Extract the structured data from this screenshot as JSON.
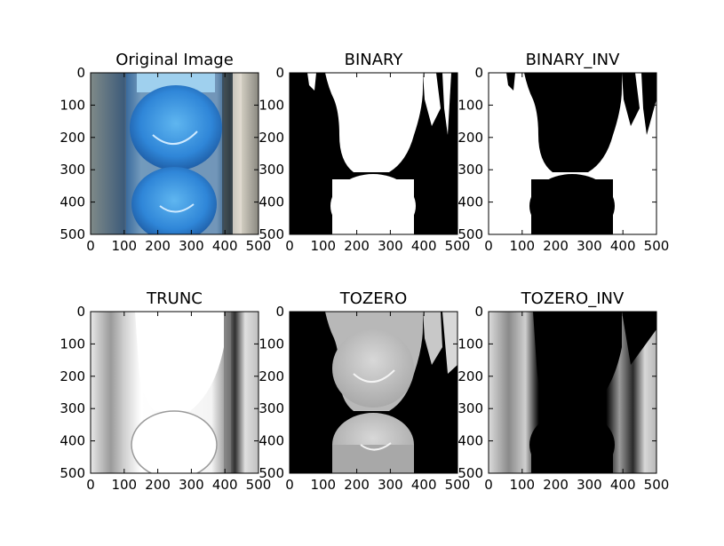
{
  "chart_data": [
    {
      "type": "image",
      "title": "Original Image",
      "xticks": [
        0,
        100,
        200,
        300,
        400,
        500
      ],
      "yticks": [
        0,
        100,
        200,
        300,
        400,
        500
      ],
      "xlim": [
        0,
        500
      ],
      "ylim": [
        500,
        0
      ],
      "colors": {
        "blue": "#2f7fd0",
        "light_blue": "#5aaeea",
        "background": "#c7c4ba"
      }
    },
    {
      "type": "image",
      "title": "BINARY",
      "xticks": [
        0,
        100,
        200,
        300,
        400,
        500
      ],
      "yticks": [
        0,
        100,
        200,
        300,
        400,
        500
      ],
      "xlim": [
        0,
        500
      ],
      "ylim": [
        500,
        0
      ]
    },
    {
      "type": "image",
      "title": "BINARY_INV",
      "xticks": [
        0,
        100,
        200,
        300,
        400,
        500
      ],
      "yticks": [
        0,
        100,
        200,
        300,
        400,
        500
      ],
      "xlim": [
        0,
        500
      ],
      "ylim": [
        500,
        0
      ]
    },
    {
      "type": "image",
      "title": "TRUNC",
      "xticks": [
        0,
        100,
        200,
        300,
        400,
        500
      ],
      "yticks": [
        0,
        100,
        200,
        300,
        400,
        500
      ],
      "xlim": [
        0,
        500
      ],
      "ylim": [
        500,
        0
      ]
    },
    {
      "type": "image",
      "title": "TOZERO",
      "xticks": [
        0,
        100,
        200,
        300,
        400,
        500
      ],
      "yticks": [
        0,
        100,
        200,
        300,
        400,
        500
      ],
      "xlim": [
        0,
        500
      ],
      "ylim": [
        500,
        0
      ]
    },
    {
      "type": "image",
      "title": "TOZERO_INV",
      "xticks": [
        0,
        100,
        200,
        300,
        400,
        500
      ],
      "yticks": [
        0,
        100,
        200,
        300,
        400,
        500
      ],
      "xlim": [
        0,
        500
      ],
      "ylim": [
        500,
        0
      ]
    }
  ]
}
